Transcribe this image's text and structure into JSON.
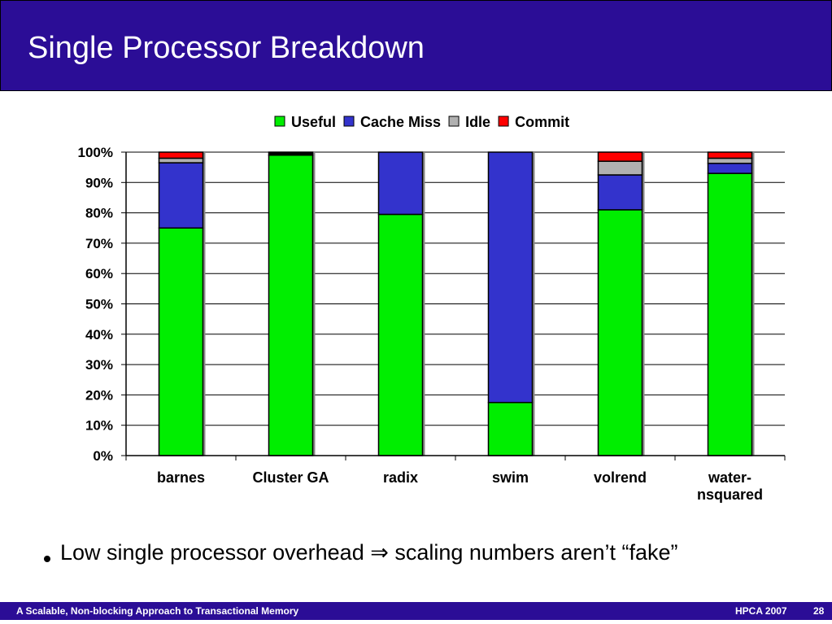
{
  "slide": {
    "title": "Single Processor Breakdown",
    "bullet_text": "Low single processor overhead ⇒ scaling numbers aren’t “fake”",
    "footer_left": "A Scalable, Non-blocking Approach to Transactional Memory",
    "footer_conf": "HPCA 2007",
    "footer_page": "28",
    "colors": {
      "title_bar": "#2b0d96",
      "footer_bar": "#2b0d96"
    }
  },
  "chart_data": {
    "type": "bar",
    "stacked": true,
    "categories": [
      "barnes",
      "Cluster GA",
      "radix",
      "swim",
      "volrend",
      "water-nsquared"
    ],
    "category_lines": [
      [
        "barnes"
      ],
      [
        "Cluster GA"
      ],
      [
        "radix"
      ],
      [
        "swim"
      ],
      [
        "volrend"
      ],
      [
        "water-",
        "nsquared"
      ]
    ],
    "series": [
      {
        "name": "Useful",
        "color": "#00ee00",
        "values": [
          75,
          99,
          79.5,
          17.5,
          81,
          93
        ]
      },
      {
        "name": "Cache Miss",
        "color": "#3333cc",
        "values": [
          21.5,
          0,
          20.5,
          82.5,
          11.5,
          3.3
        ]
      },
      {
        "name": "Idle",
        "color": "#b0b0b0",
        "values": [
          1.5,
          0,
          0,
          0,
          4.5,
          1.7
        ]
      },
      {
        "name": "Commit",
        "color": "#ff0000",
        "values": [
          2,
          1,
          0,
          0,
          3,
          2
        ]
      }
    ],
    "yticks": [
      "0%",
      "10%",
      "20%",
      "30%",
      "40%",
      "50%",
      "60%",
      "70%",
      "80%",
      "90%",
      "100%"
    ],
    "ylim": [
      0,
      100
    ],
    "grid": true,
    "legend": "top"
  }
}
